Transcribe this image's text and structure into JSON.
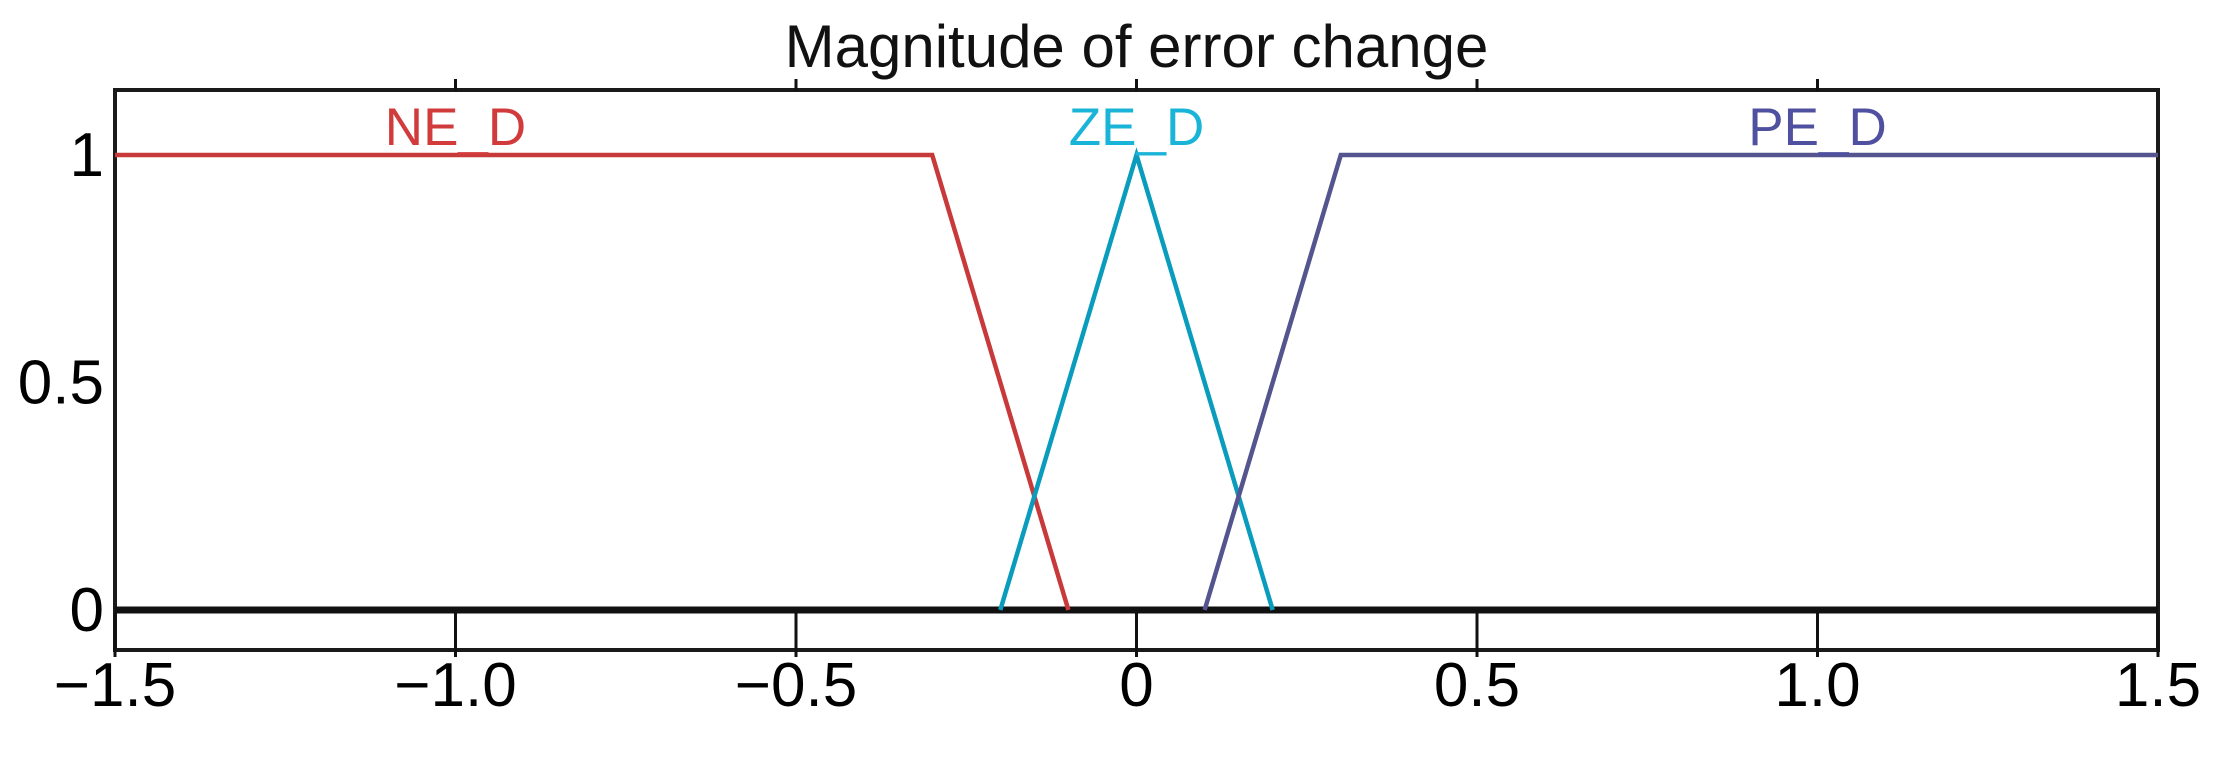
{
  "chart_data": {
    "type": "line",
    "title": "Magnitude of error change",
    "xlabel": "",
    "ylabel": "",
    "xlim": [
      -1.5,
      1.5
    ],
    "ylim": [
      0,
      1
    ],
    "grid": false,
    "legend_position": "none",
    "background": "#ffffff",
    "frame_color": "#1a1a1a",
    "baseline": {
      "y": 0,
      "color": "#111111",
      "note": "thick black line at membership 0"
    },
    "text_color": "#000000",
    "x_ticks": [
      -1.5,
      -1.0,
      -0.5,
      0,
      0.5,
      1.0,
      1.5
    ],
    "x_tick_labels": [
      "−1.5",
      "−1.0",
      "−0.5",
      "0",
      "0.5",
      "1.0",
      "1.5"
    ],
    "x_top_ticks": [
      -1.0,
      -0.5,
      0,
      0.5,
      1.0
    ],
    "y_ticks": [
      0,
      0.5,
      1
    ],
    "y_tick_labels": [
      "0",
      "0.5",
      "1"
    ],
    "series": [
      {
        "name": "NE_D",
        "shape": "trapezoid-left",
        "color": "#c83a3a",
        "label_color": "#d23b3b",
        "points": [
          [
            -1.5,
            1
          ],
          [
            -0.3,
            1
          ],
          [
            -0.1,
            0
          ]
        ],
        "label_pos": [
          -1.0,
          1
        ]
      },
      {
        "name": "ZE_D",
        "shape": "triangle",
        "color": "#0a9cbd",
        "label_color": "#1ab4d8",
        "points": [
          [
            -0.2,
            0
          ],
          [
            0,
            1
          ],
          [
            0.2,
            0
          ]
        ],
        "label_pos": [
          0,
          1
        ]
      },
      {
        "name": "PE_D",
        "shape": "trapezoid-right",
        "color": "#54548e",
        "label_color": "#5050a0",
        "points": [
          [
            0.1,
            0
          ],
          [
            0.3,
            1
          ],
          [
            1.5,
            1
          ]
        ],
        "label_pos": [
          1.0,
          1
        ]
      }
    ]
  }
}
